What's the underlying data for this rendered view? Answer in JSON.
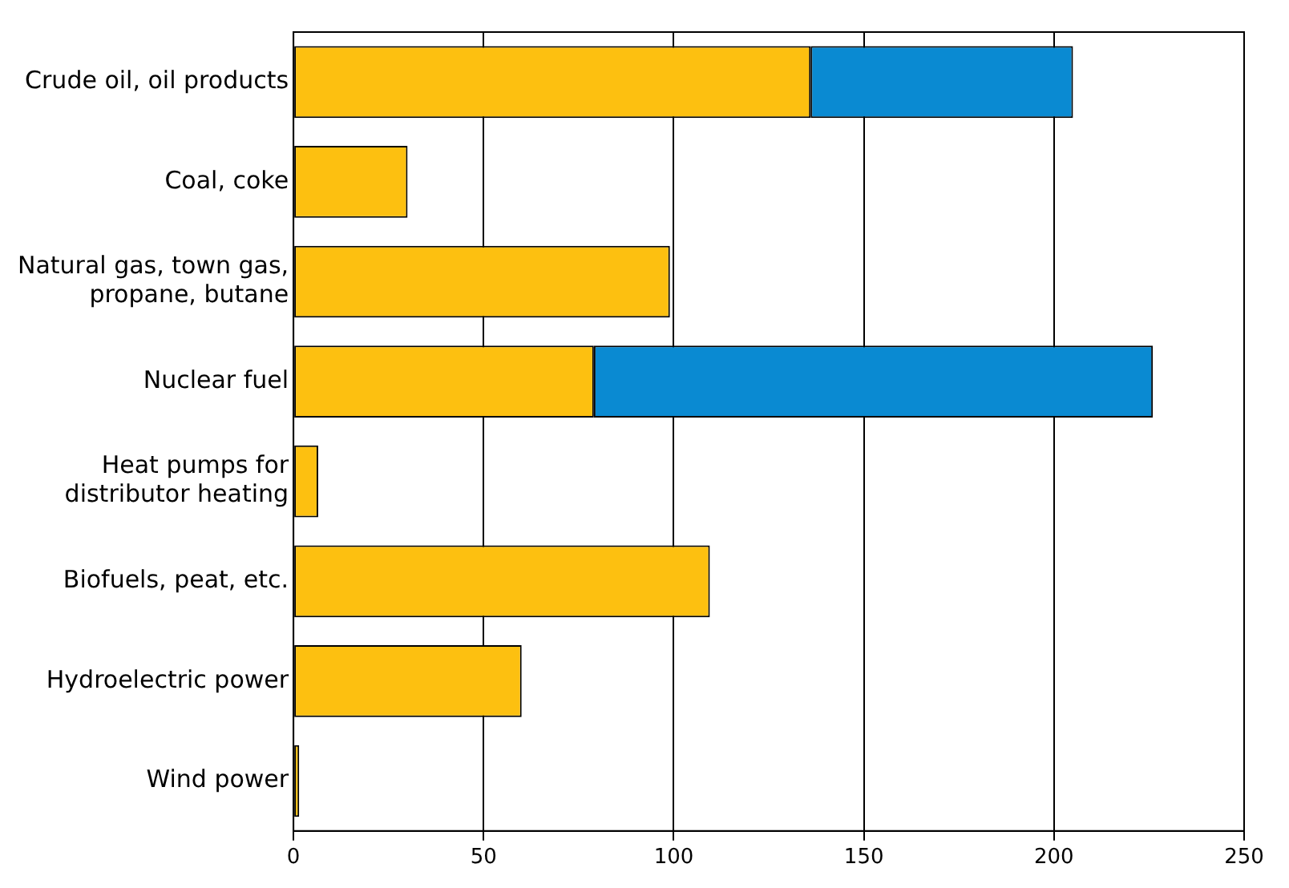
{
  "chart_data": {
    "type": "bar",
    "orientation": "horizontal",
    "stacked": true,
    "categories": [
      "Crude oil, oil products",
      "Coal, coke",
      "Natural gas, town gas,\npropane, butane",
      "Nuclear fuel",
      "Heat pumps for\ndistributor heating",
      "Biofuels, peat, etc.",
      "Hydroelectric power",
      "Wind power"
    ],
    "series": [
      {
        "color": "#fdc010",
        "values": [
          136,
          30,
          99,
          79,
          6.5,
          109.5,
          60,
          1.5
        ]
      },
      {
        "color": "#0a8ad2",
        "values": [
          69,
          null,
          null,
          147,
          null,
          null,
          null,
          null
        ]
      }
    ],
    "xlim": [
      0,
      250
    ],
    "xticks": [
      0,
      50,
      100,
      150,
      200,
      250
    ],
    "grid": "x",
    "legend": false
  }
}
